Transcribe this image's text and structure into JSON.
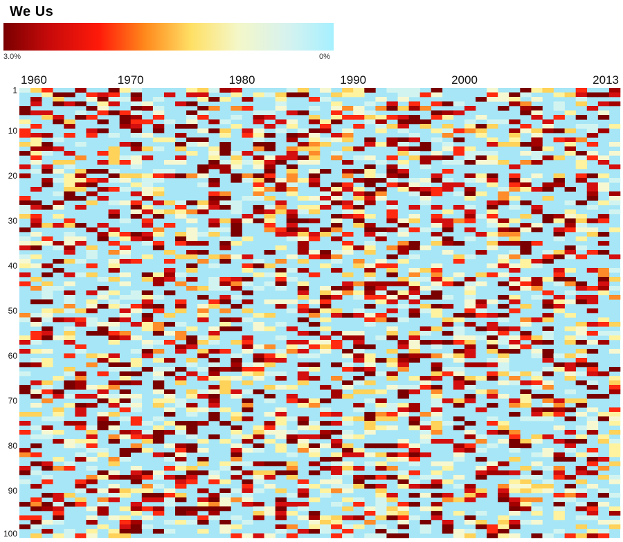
{
  "title": "We Us",
  "legend": {
    "min_label": "3.0%",
    "max_label": "0%",
    "colors": [
      "#7a0000",
      "#c80a0a",
      "#ff1a0a",
      "#ff8a1c",
      "#ffe066",
      "#f4f7c8",
      "#d6f2ef",
      "#a6f0ff"
    ]
  },
  "chart_data": {
    "type": "heatmap",
    "title": "We Us",
    "x_start_year": 1960,
    "x_end_year": 2013,
    "x_tick_labels": [
      "1960",
      "1970",
      "1980",
      "1990",
      "2000",
      "2013"
    ],
    "x_tick_years": [
      1960,
      1970,
      1980,
      1990,
      2000,
      2013
    ],
    "y_count": 100,
    "y_tick_labels": [
      "1",
      "10",
      "20",
      "30",
      "40",
      "50",
      "60",
      "70",
      "80",
      "90",
      "100"
    ],
    "y_tick_values": [
      1,
      10,
      20,
      30,
      40,
      50,
      60,
      70,
      80,
      90,
      100
    ],
    "value_range": [
      0,
      3.0
    ],
    "value_unit": "%",
    "background_color": "#a6e6f6"
  }
}
